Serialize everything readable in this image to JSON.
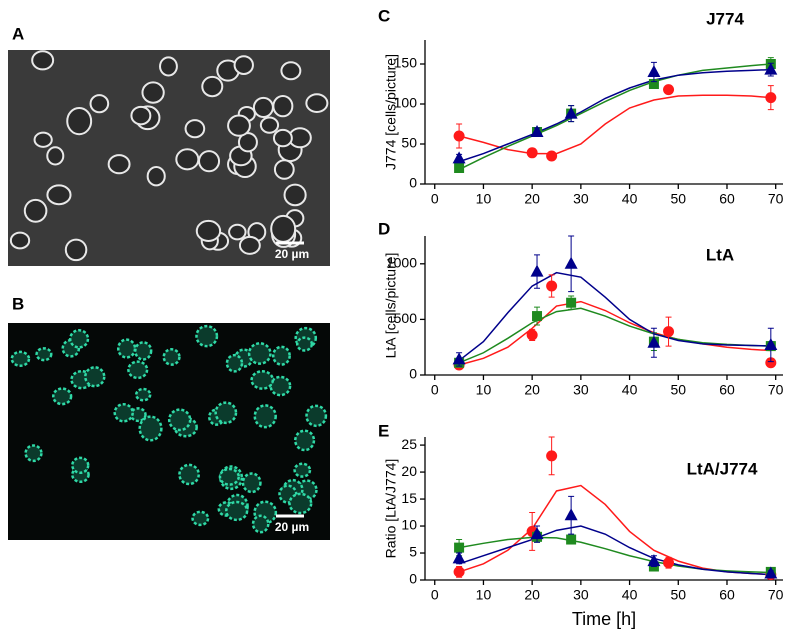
{
  "images": [
    {
      "label": "A",
      "scale_bar": "20 µm"
    },
    {
      "label": "B",
      "scale_bar": "20 µm"
    }
  ],
  "chart_data": [
    {
      "type": "scatter",
      "panel": "C",
      "title": "J774",
      "y_label": "J774 [cells/picture]",
      "xlim": [
        -2,
        71.5
      ],
      "xticks": [
        0,
        10,
        20,
        30,
        40,
        50,
        60,
        70
      ],
      "ylim": [
        0,
        180
      ],
      "yticks": [
        0,
        50,
        100,
        150
      ],
      "fit_x": [
        5,
        10,
        15,
        20,
        25,
        30,
        35,
        40,
        45,
        50,
        55,
        60,
        65,
        69
      ],
      "series": [
        {
          "color": "#ff1a1a",
          "marker": "circle",
          "x": [
            5,
            20,
            24,
            48,
            69
          ],
          "values": [
            60,
            39,
            35,
            118,
            108
          ],
          "errors": [
            15,
            3,
            3,
            3,
            15
          ],
          "fit": [
            60,
            52,
            43,
            38,
            38,
            50,
            75,
            95,
            105,
            110,
            111,
            111,
            110,
            108
          ]
        },
        {
          "color": "#1f8a1f",
          "marker": "square",
          "x": [
            5,
            21,
            28,
            45,
            69
          ],
          "values": [
            20,
            65,
            88,
            125,
            150
          ],
          "errors": [
            3,
            3,
            10,
            5,
            8
          ],
          "fit": [
            18,
            33,
            47,
            60,
            73,
            88,
            103,
            117,
            128,
            136,
            142,
            145,
            148,
            150
          ]
        },
        {
          "color": "#00008b",
          "marker": "triangle",
          "x": [
            5,
            21,
            28,
            45,
            69
          ],
          "values": [
            32,
            65,
            88,
            140,
            143
          ],
          "errors": [
            5,
            5,
            10,
            12,
            8
          ],
          "fit": [
            28,
            38,
            50,
            62,
            75,
            90,
            107,
            120,
            130,
            136,
            139,
            141,
            142,
            143
          ]
        }
      ]
    },
    {
      "type": "scatter",
      "panel": "D",
      "title": "LtA",
      "y_label": "LtA [cells/picture]",
      "xlim": [
        -2,
        71.5
      ],
      "xticks": [
        0,
        10,
        20,
        30,
        40,
        50,
        60,
        70
      ],
      "ylim": [
        0,
        1250
      ],
      "yticks": [
        0,
        500,
        1000
      ],
      "fit_x": [
        5,
        10,
        15,
        20,
        25,
        30,
        35,
        40,
        45,
        50,
        55,
        60,
        65,
        69
      ],
      "series": [
        {
          "color": "#ff1a1a",
          "marker": "circle",
          "x": [
            5,
            20,
            24,
            48,
            69
          ],
          "values": [
            90,
            360,
            800,
            390,
            110
          ],
          "errors": [
            30,
            50,
            100,
            130,
            30
          ],
          "fit": [
            90,
            150,
            250,
            420,
            620,
            660,
            580,
            470,
            380,
            320,
            280,
            250,
            230,
            220
          ]
        },
        {
          "color": "#1f8a1f",
          "marker": "square",
          "x": [
            5,
            21,
            28,
            45,
            69
          ],
          "values": [
            110,
            530,
            650,
            300,
            260
          ],
          "errors": [
            30,
            80,
            60,
            80,
            40
          ],
          "fit": [
            110,
            200,
            330,
            470,
            570,
            600,
            530,
            440,
            370,
            320,
            290,
            275,
            265,
            260
          ]
        },
        {
          "color": "#00008b",
          "marker": "triangle",
          "x": [
            5,
            21,
            28,
            45,
            69
          ],
          "values": [
            140,
            930,
            1000,
            290,
            270
          ],
          "errors": [
            60,
            150,
            250,
            130,
            150
          ],
          "fit": [
            130,
            300,
            560,
            800,
            920,
            880,
            700,
            500,
            370,
            310,
            280,
            270,
            265,
            262
          ]
        }
      ]
    },
    {
      "type": "scatter",
      "panel": "E",
      "title": "LtA/J774",
      "y_label": "Ratio [LtA/J774]",
      "x_label": "Time [h]",
      "xlim": [
        -2,
        71.5
      ],
      "xticks": [
        0,
        10,
        20,
        30,
        40,
        50,
        60,
        70
      ],
      "ylim": [
        0,
        26.5
      ],
      "yticks": [
        0,
        5,
        10,
        15,
        20,
        25
      ],
      "fit_x": [
        5,
        10,
        15,
        20,
        25,
        30,
        35,
        40,
        45,
        50,
        55,
        60,
        65,
        69
      ],
      "series": [
        {
          "color": "#ff1a1a",
          "marker": "circle",
          "x": [
            5,
            20,
            24,
            48,
            69
          ],
          "values": [
            1.5,
            9,
            23,
            3.2,
            1
          ],
          "errors": [
            1,
            3.5,
            3.5,
            1,
            0.5
          ],
          "fit": [
            1.5,
            3,
            5.5,
            9.5,
            16.5,
            17.5,
            14,
            9,
            5.5,
            3.5,
            2.2,
            1.5,
            1.2,
            1
          ]
        },
        {
          "color": "#1f8a1f",
          "marker": "square",
          "x": [
            5,
            21,
            28,
            45,
            69
          ],
          "values": [
            6,
            8,
            7.5,
            2.5,
            1.5
          ],
          "errors": [
            1.5,
            1,
            0.5,
            0.5,
            0.5
          ],
          "fit": [
            6,
            6.8,
            7.5,
            7.9,
            7.8,
            7,
            5.8,
            4.5,
            3.4,
            2.6,
            2,
            1.7,
            1.5,
            1.4
          ]
        },
        {
          "color": "#00008b",
          "marker": "triangle",
          "x": [
            5,
            21,
            28,
            45,
            69
          ],
          "values": [
            4,
            8.5,
            12,
            3.5,
            1.2
          ],
          "errors": [
            1,
            1.5,
            3.5,
            1,
            0.5
          ],
          "fit": [
            3,
            4.5,
            6,
            7.5,
            9.2,
            10,
            8.5,
            6,
            4,
            2.8,
            2,
            1.5,
            1.2,
            1
          ]
        }
      ]
    }
  ]
}
